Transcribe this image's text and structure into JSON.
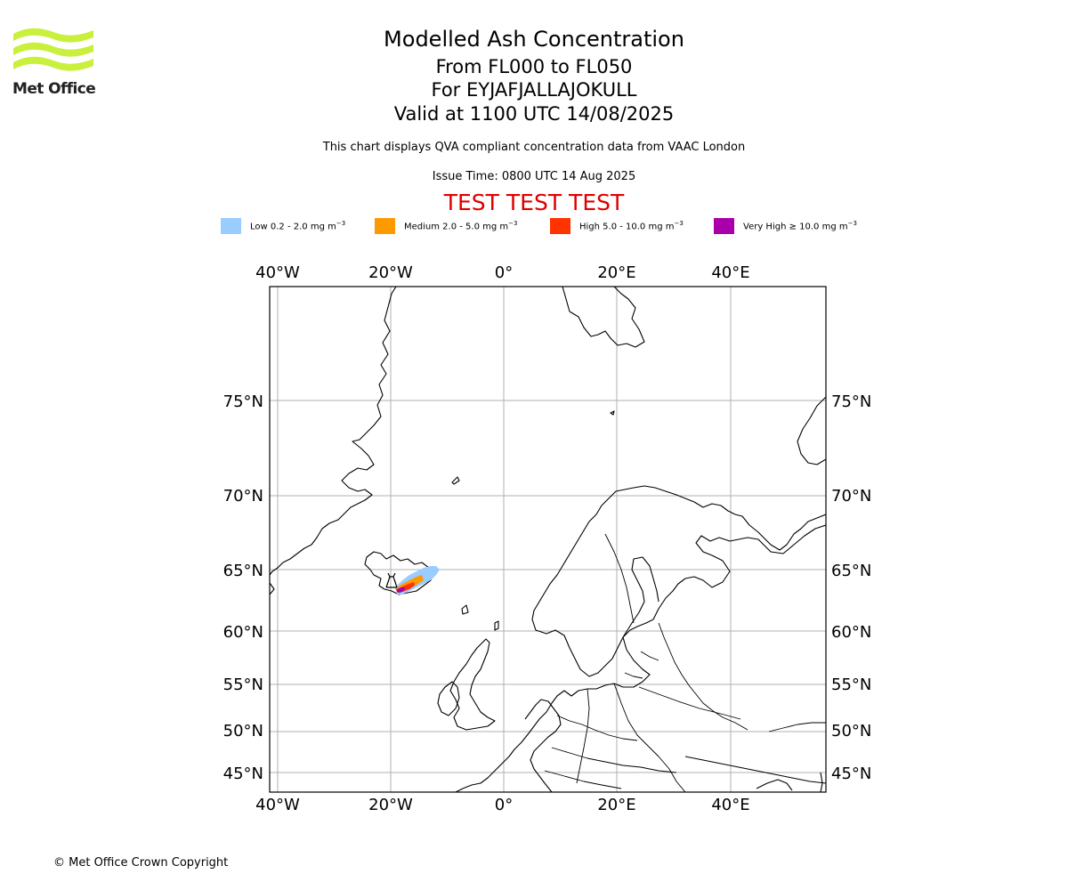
{
  "logo": {
    "text": "Met Office",
    "color": "#c8f03c"
  },
  "titles": {
    "main": "Modelled Ash Concentration",
    "levels": "From FL000 to FL050",
    "volcano": "For EYJAFJALLAJOKULL",
    "valid": "Valid at 1100 UTC 14/08/2025"
  },
  "description": "This chart displays QVA compliant concentration data from VAAC London",
  "issue_time": "Issue Time: 0800 UTC 14 Aug 2025",
  "test_banner": "TEST TEST TEST",
  "legend": [
    {
      "label": "Low 0.2 - 2.0 mg m",
      "exp": "−3",
      "color": "#99ccff"
    },
    {
      "label": "Medium 2.0 - 5.0 mg m",
      "exp": "−3",
      "color": "#ff9900"
    },
    {
      "label": "High 5.0 - 10.0 mg m",
      "exp": "−3",
      "color": "#ff3300"
    },
    {
      "label": "Very High  ≥  10.0 mg m",
      "exp": "−3",
      "color": "#aa00aa"
    }
  ],
  "map": {
    "lon_labels": [
      "40°W",
      "20°W",
      "0°",
      "20°E",
      "40°E"
    ],
    "lat_labels": [
      "75°N",
      "70°N",
      "65°N",
      "60°N",
      "55°N",
      "50°N",
      "45°N"
    ],
    "grid": true
  },
  "copyright": "© Met Office Crown Copyright"
}
